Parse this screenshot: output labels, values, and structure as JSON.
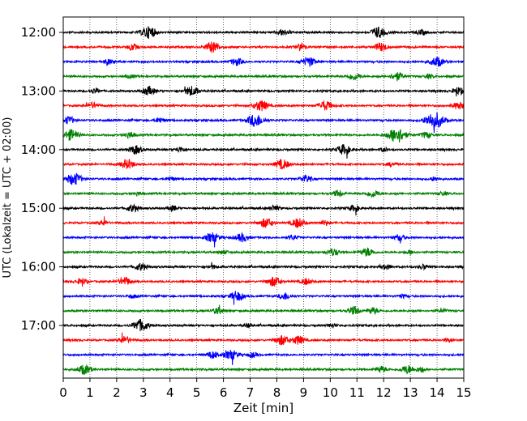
{
  "chart_data": {
    "type": "line",
    "subtype": "seismogram-helicorder",
    "xlabel": "Zeit  [min]",
    "ylabel": "UTC (Lokalzeit = UTC + 02:00)",
    "xlim": [
      0,
      15
    ],
    "x_ticks": [
      0,
      1,
      2,
      3,
      4,
      5,
      6,
      7,
      8,
      9,
      10,
      11,
      12,
      13,
      14,
      15
    ],
    "x_tick_labels": [
      "0",
      "1",
      "2",
      "3",
      "4",
      "5",
      "6",
      "7",
      "8",
      "9",
      "10",
      "11",
      "12",
      "13",
      "14",
      "15"
    ],
    "y_tick_labels": [
      "12:00",
      "13:00",
      "14:00",
      "15:00",
      "16:00",
      "17:00"
    ],
    "trace_interval_minutes": 15,
    "trace_count": 24,
    "color_cycle": [
      "#000000",
      "#ff0000",
      "#0000ff",
      "#008000"
    ],
    "grid": {
      "x": true,
      "style": "dotted"
    },
    "series": [
      {
        "start": "12:00",
        "events": [
          [
            3.2,
            1.0
          ],
          [
            8.2,
            0.5
          ],
          [
            11.8,
            0.9
          ],
          [
            13.4,
            0.4
          ]
        ]
      },
      {
        "start": "12:15",
        "events": [
          [
            2.6,
            0.5
          ],
          [
            5.6,
            0.9
          ],
          [
            8.9,
            0.5
          ],
          [
            11.9,
            0.7
          ]
        ]
      },
      {
        "start": "12:30",
        "events": [
          [
            1.7,
            0.4
          ],
          [
            6.5,
            0.6
          ],
          [
            9.2,
            0.8
          ],
          [
            14.0,
            0.8
          ]
        ]
      },
      {
        "start": "12:45",
        "events": [
          [
            2.5,
            0.3
          ],
          [
            10.9,
            0.6
          ],
          [
            12.5,
            0.7
          ],
          [
            13.7,
            0.3
          ]
        ]
      },
      {
        "start": "13:00",
        "events": [
          [
            1.2,
            0.4
          ],
          [
            3.2,
            0.7
          ],
          [
            4.8,
            0.8
          ],
          [
            14.8,
            0.6
          ]
        ]
      },
      {
        "start": "13:15",
        "events": [
          [
            1.1,
            0.5
          ],
          [
            7.4,
            0.9
          ],
          [
            9.8,
            0.8
          ],
          [
            14.8,
            0.6
          ]
        ]
      },
      {
        "start": "13:30",
        "events": [
          [
            0.2,
            0.6
          ],
          [
            3.6,
            0.4
          ],
          [
            7.2,
            1.1
          ],
          [
            13.9,
            1.4
          ]
        ]
      },
      {
        "start": "13:45",
        "events": [
          [
            0.3,
            0.9
          ],
          [
            2.5,
            0.5
          ],
          [
            12.5,
            1.3
          ],
          [
            13.6,
            0.5
          ]
        ]
      },
      {
        "start": "14:00",
        "events": [
          [
            2.7,
            0.7
          ],
          [
            4.4,
            0.4
          ],
          [
            10.5,
            0.8
          ],
          [
            12.0,
            0.3
          ]
        ]
      },
      {
        "start": "14:15",
        "events": [
          [
            2.4,
            0.8
          ],
          [
            8.2,
            0.8
          ],
          [
            12.3,
            0.3
          ]
        ]
      },
      {
        "start": "14:30",
        "events": [
          [
            0.4,
            1.0
          ],
          [
            4.0,
            0.3
          ],
          [
            9.1,
            0.6
          ],
          [
            13.9,
            0.3
          ]
        ]
      },
      {
        "start": "14:45",
        "events": [
          [
            2.8,
            0.3
          ],
          [
            10.3,
            0.5
          ],
          [
            11.6,
            0.6
          ],
          [
            14.2,
            0.3
          ]
        ]
      },
      {
        "start": "15:00",
        "events": [
          [
            2.6,
            0.6
          ],
          [
            4.1,
            0.4
          ],
          [
            7.9,
            0.4
          ],
          [
            10.9,
            0.5
          ]
        ]
      },
      {
        "start": "15:15",
        "events": [
          [
            1.5,
            0.4
          ],
          [
            7.6,
            0.8
          ],
          [
            8.8,
            0.8
          ],
          [
            9.8,
            0.4
          ]
        ]
      },
      {
        "start": "15:30",
        "events": [
          [
            5.6,
            0.8
          ],
          [
            6.7,
            0.7
          ],
          [
            8.6,
            0.4
          ],
          [
            12.6,
            0.5
          ]
        ]
      },
      {
        "start": "15:45",
        "events": [
          [
            6.0,
            0.3
          ],
          [
            10.1,
            0.6
          ],
          [
            11.4,
            0.7
          ],
          [
            13.0,
            0.3
          ]
        ]
      },
      {
        "start": "16:00",
        "events": [
          [
            2.9,
            0.6
          ],
          [
            5.6,
            0.3
          ],
          [
            12.1,
            0.4
          ],
          [
            13.5,
            0.4
          ]
        ]
      },
      {
        "start": "16:15",
        "events": [
          [
            0.7,
            0.5
          ],
          [
            2.3,
            0.7
          ],
          [
            7.9,
            0.8
          ],
          [
            9.1,
            0.5
          ]
        ]
      },
      {
        "start": "16:30",
        "events": [
          [
            2.6,
            0.3
          ],
          [
            6.5,
            0.8
          ],
          [
            8.3,
            0.6
          ],
          [
            12.7,
            0.3
          ]
        ]
      },
      {
        "start": "16:45",
        "events": [
          [
            5.8,
            0.5
          ],
          [
            10.9,
            0.7
          ],
          [
            11.6,
            0.5
          ],
          [
            14.2,
            0.3
          ]
        ]
      },
      {
        "start": "17:00",
        "events": [
          [
            2.9,
            1.0
          ],
          [
            6.9,
            0.3
          ],
          [
            10.1,
            0.3
          ]
        ]
      },
      {
        "start": "17:15",
        "events": [
          [
            2.3,
            0.6
          ],
          [
            8.2,
            0.8
          ],
          [
            8.8,
            0.7
          ],
          [
            14.4,
            0.3
          ]
        ]
      },
      {
        "start": "17:30",
        "events": [
          [
            5.6,
            0.6
          ],
          [
            6.3,
            0.8
          ],
          [
            7.1,
            0.4
          ]
        ]
      },
      {
        "start": "17:45",
        "events": [
          [
            0.8,
            0.8
          ],
          [
            11.9,
            0.5
          ],
          [
            12.9,
            0.7
          ],
          [
            13.4,
            0.4
          ]
        ]
      }
    ]
  }
}
